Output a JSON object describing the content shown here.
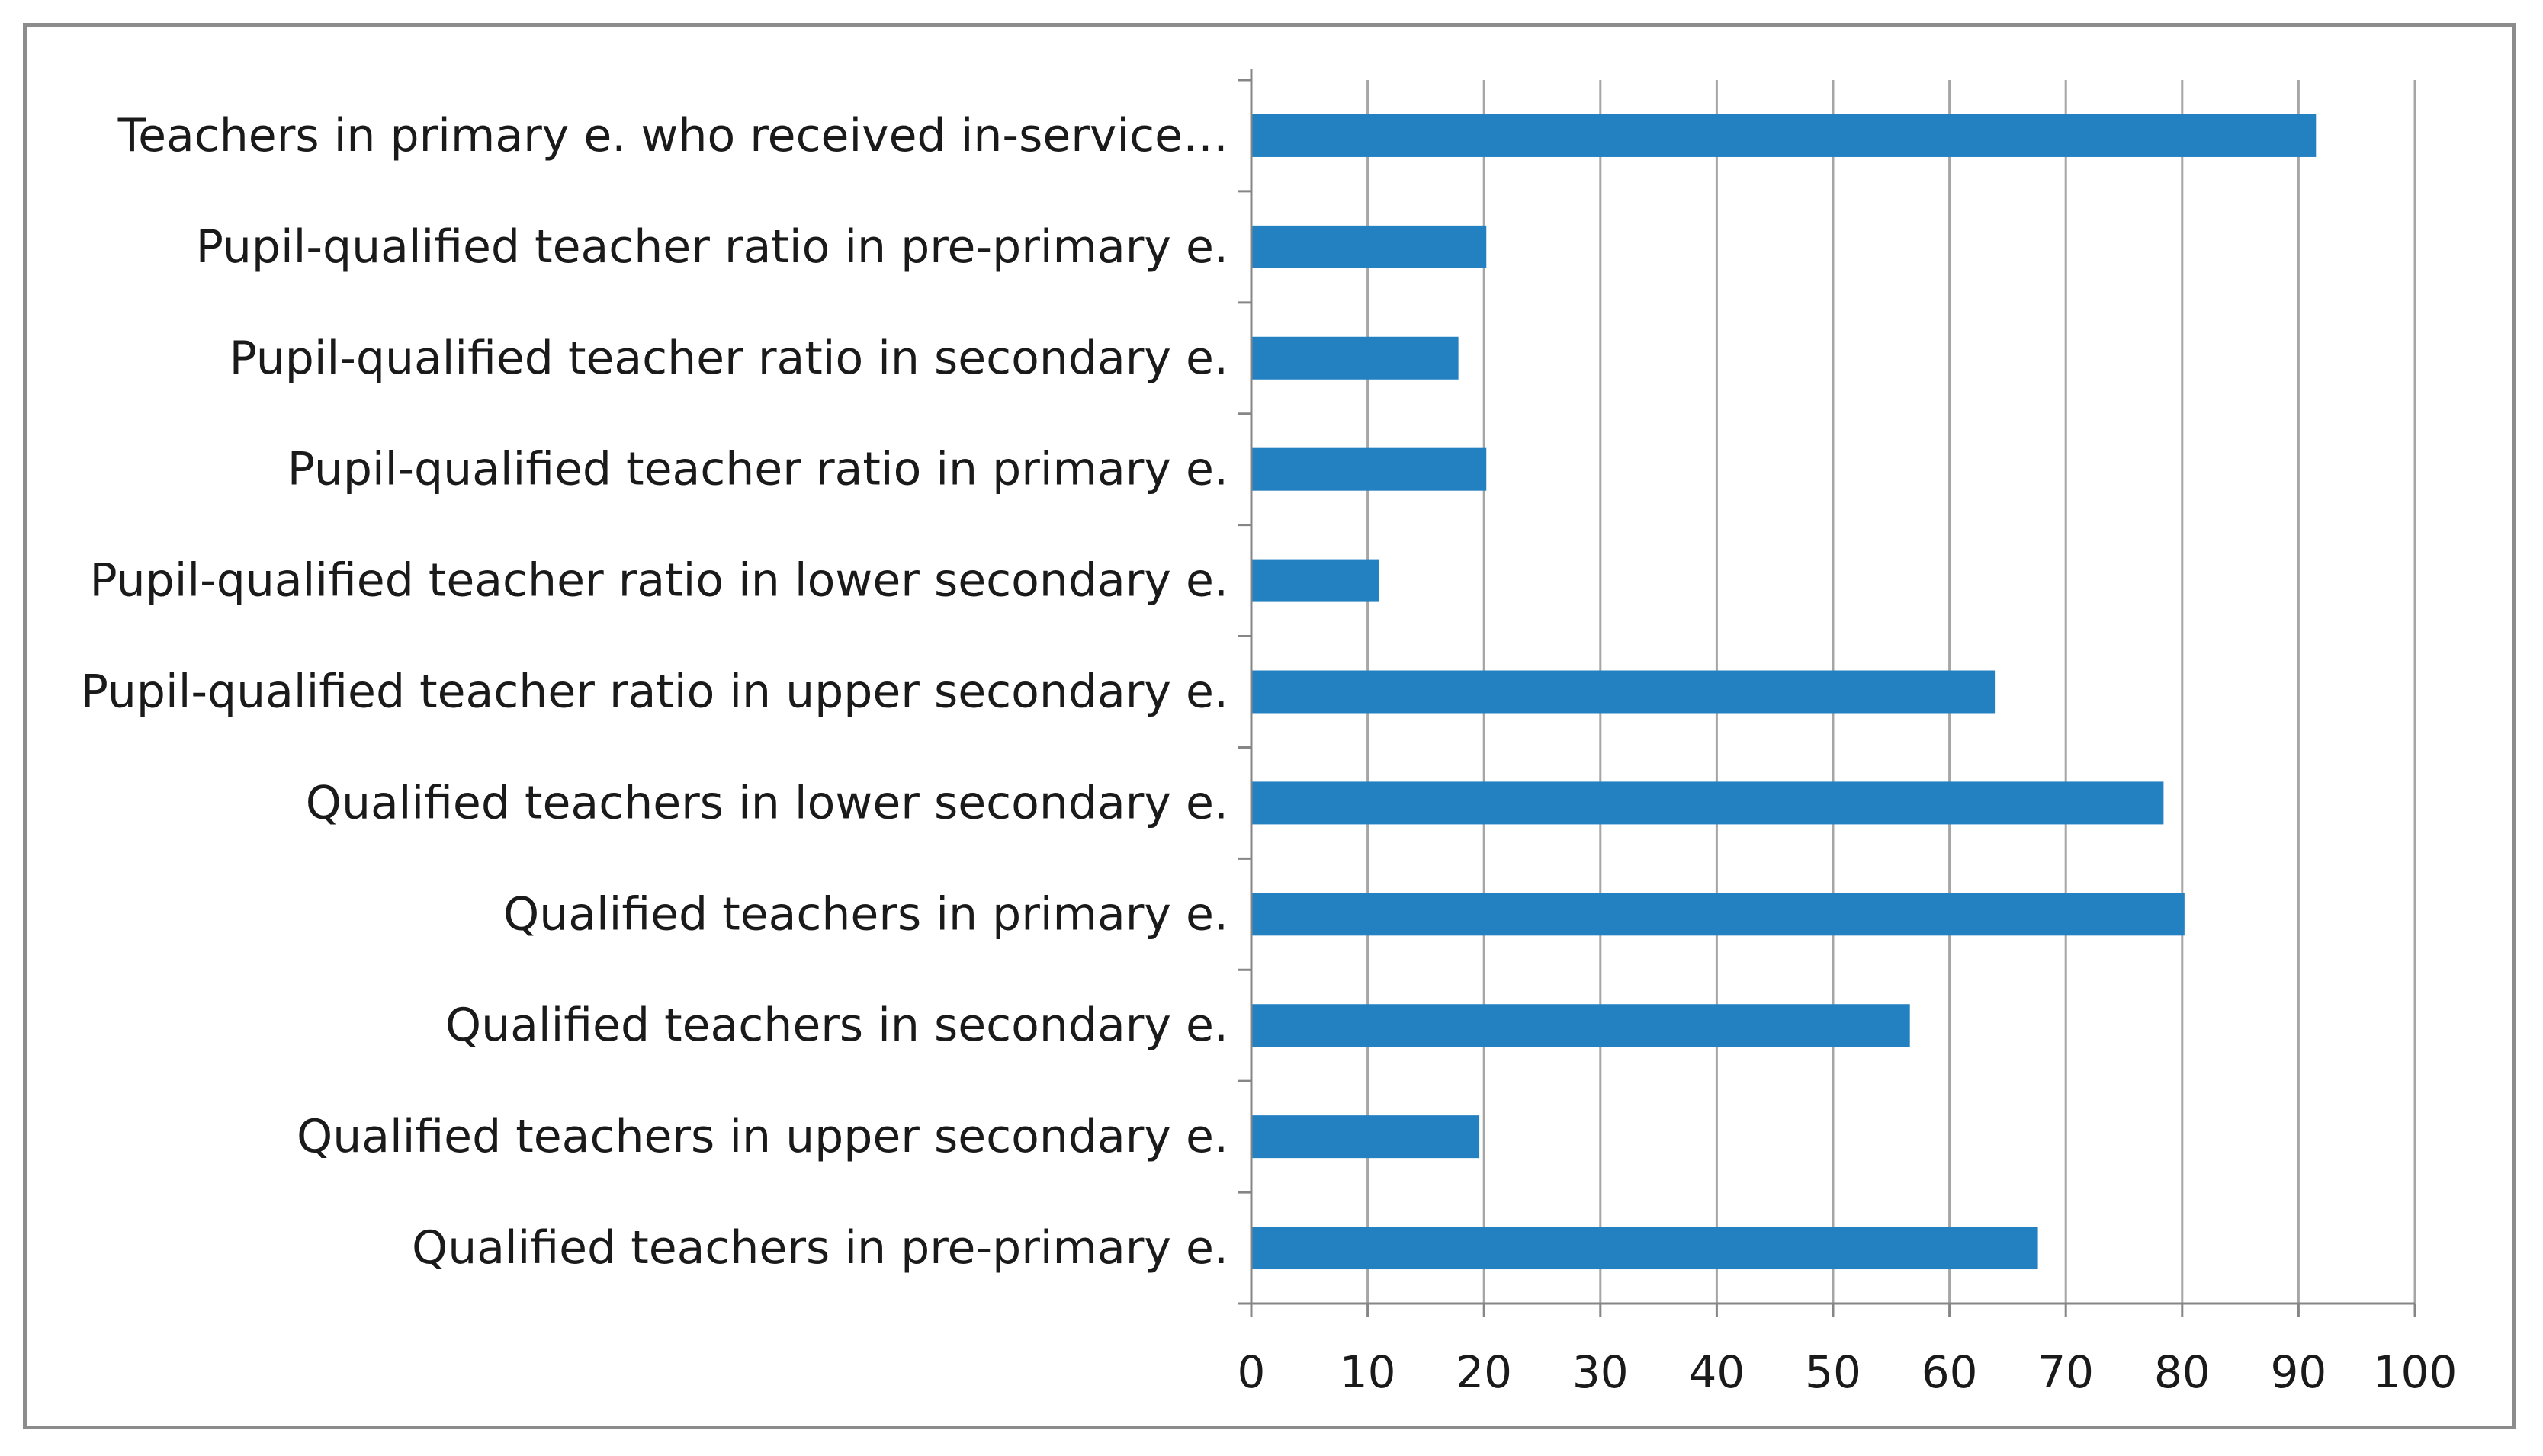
{
  "chart_data": {
    "type": "bar",
    "orientation": "horizontal",
    "title": "",
    "xlabel": "",
    "ylabel": "",
    "xlim": [
      0,
      100
    ],
    "x_ticks": [
      "0",
      "10",
      "20",
      "30",
      "40",
      "50",
      "60",
      "70",
      "80",
      "90",
      "100"
    ],
    "grid": true,
    "legend": "none",
    "bar_color": "#2481c1",
    "categories": [
      "Teachers in primary e. who received in-service…",
      "Pupil-qualified teacher ratio in pre-primary e.",
      "Pupil-qualified teacher ratio in secondary e.",
      "Pupil-qualified teacher ratio in primary e.",
      "Pupil-qualified teacher ratio in lower secondary e.",
      "Pupil-qualified teacher ratio in upper secondary e.",
      "Qualified teachers in lower secondary e.",
      "Qualified teachers in primary e.",
      "Qualified teachers in secondary e.",
      "Qualified teachers in upper secondary e.",
      "Qualified teachers in pre-primary e."
    ],
    "values": [
      91.5,
      20.2,
      17.8,
      20.2,
      11.0,
      63.9,
      78.4,
      80.2,
      56.6,
      19.6,
      67.6
    ]
  }
}
